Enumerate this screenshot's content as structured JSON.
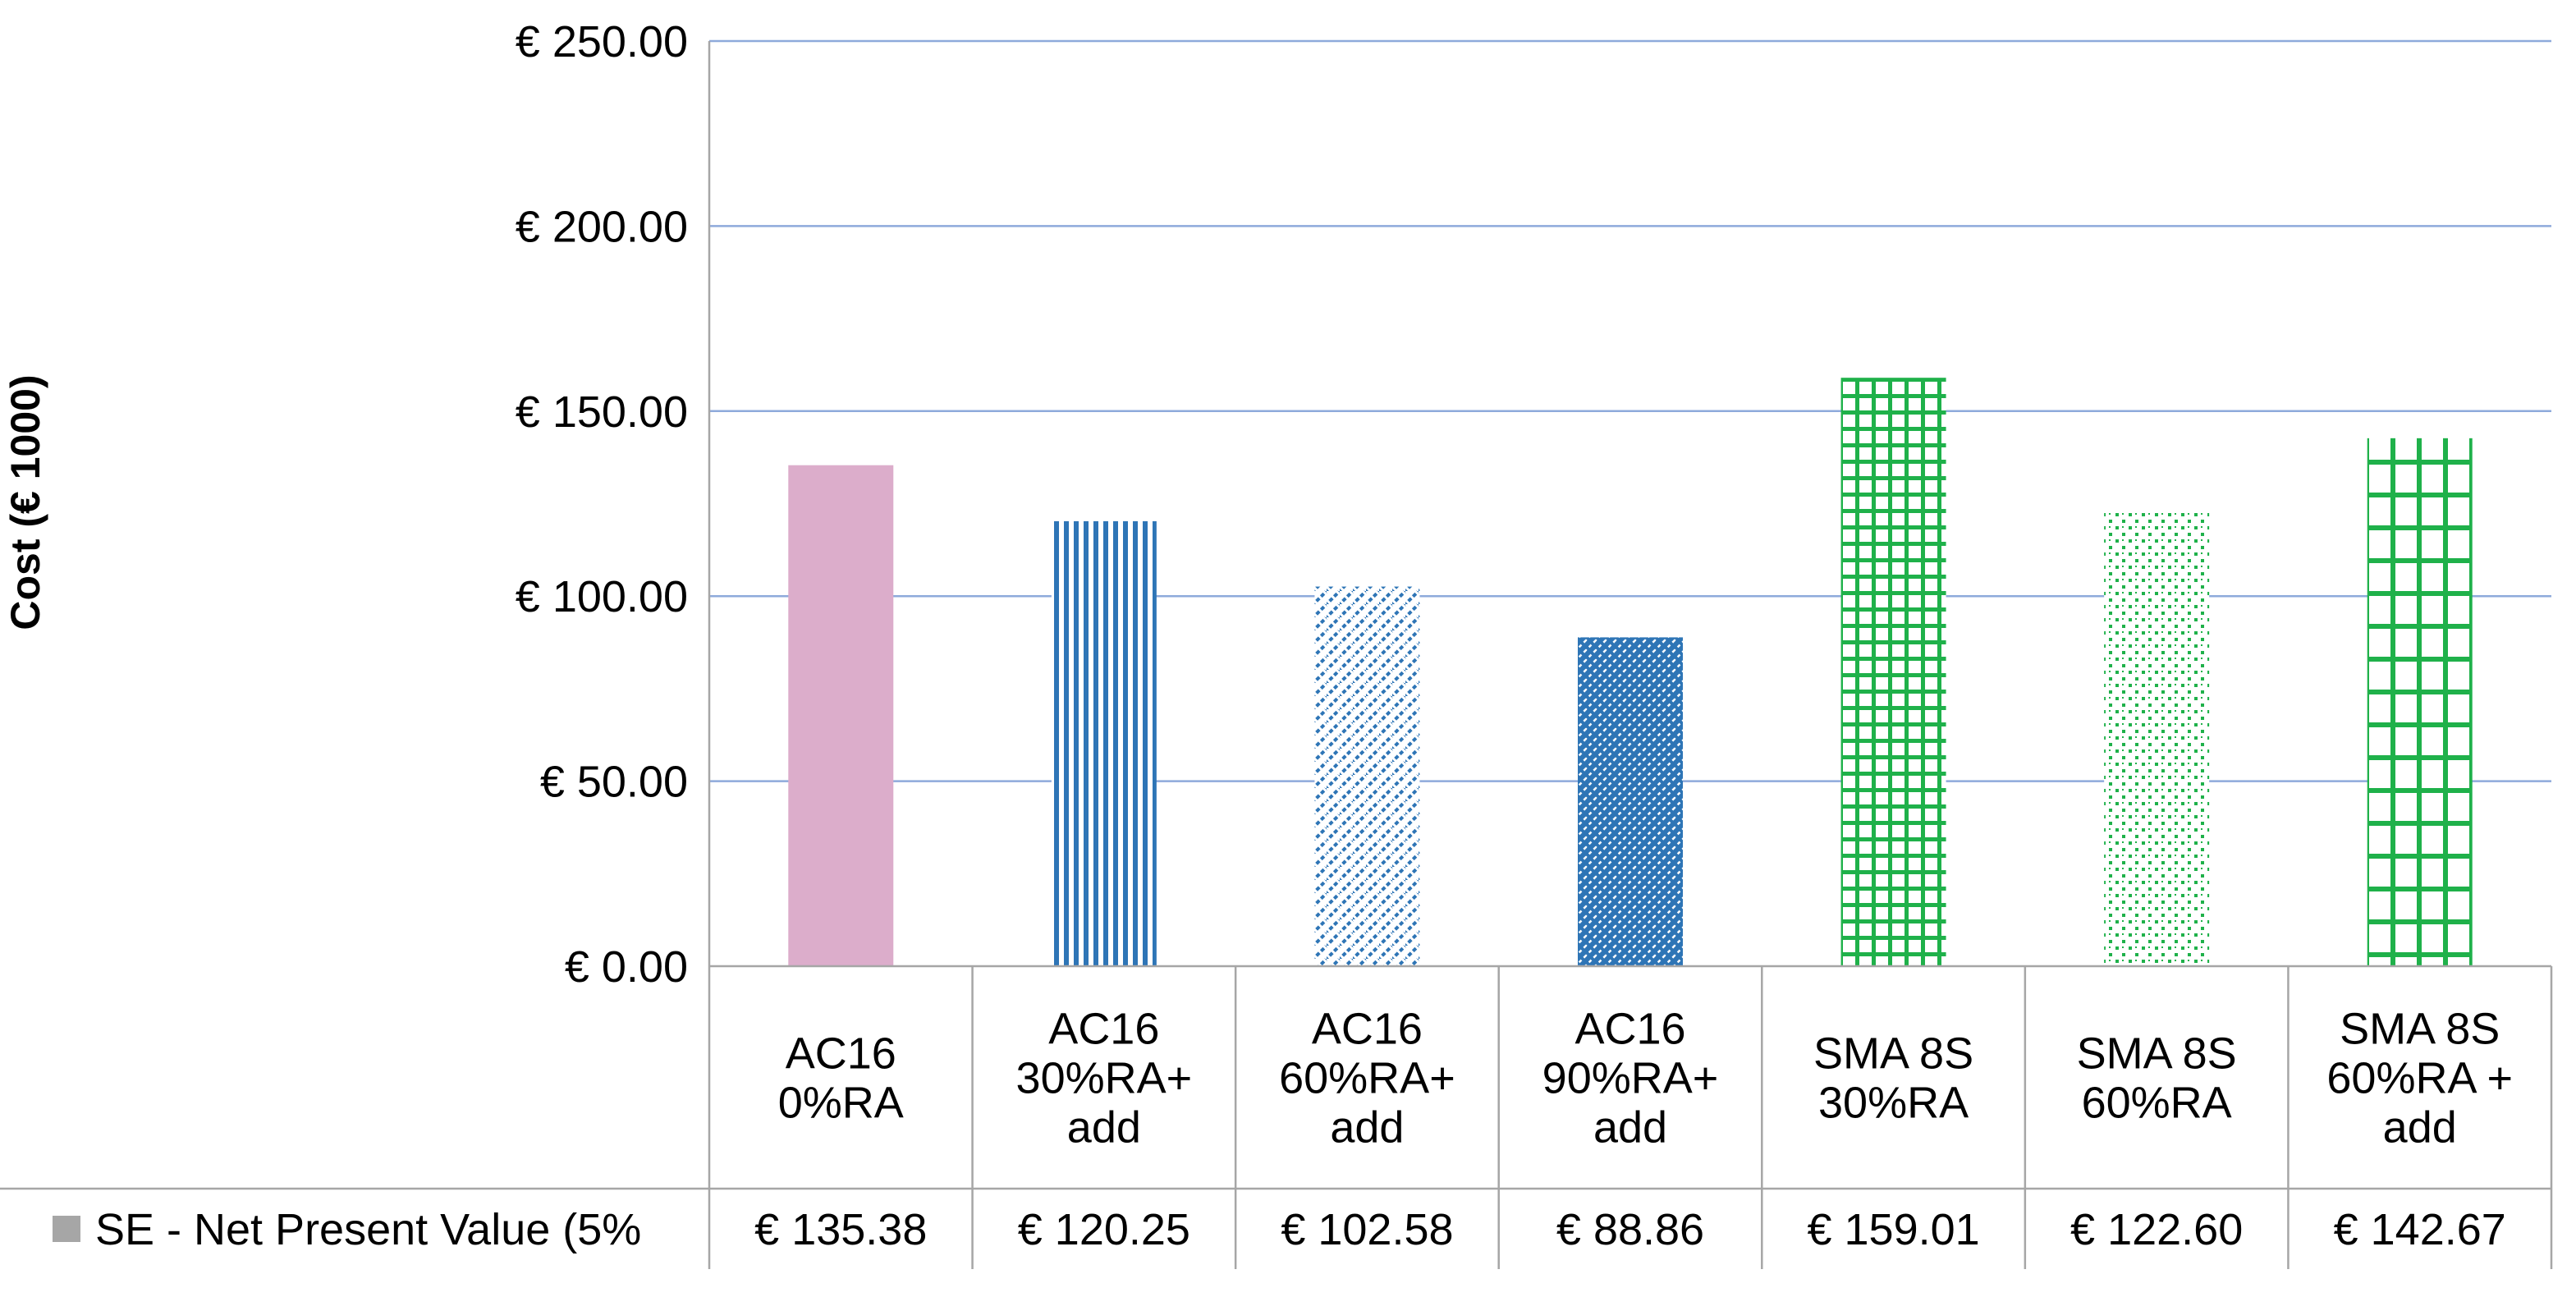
{
  "chart_data": {
    "type": "bar",
    "title": "",
    "xlabel": "",
    "ylabel": "Cost (€ 1000)",
    "ylim": [
      0,
      250
    ],
    "yticks": [
      0,
      50,
      100,
      150,
      200,
      250
    ],
    "ytick_labels": [
      "€ 0.00",
      "€ 50.00",
      "€ 100.00",
      "€ 150.00",
      "€ 200.00",
      "€ 250.00"
    ],
    "grid": true,
    "categories": [
      [
        "AC16",
        "0%RA"
      ],
      [
        "AC16",
        "30%RA+",
        "add"
      ],
      [
        "AC16",
        "60%RA+",
        "add"
      ],
      [
        "AC16",
        "90%RA+",
        "add"
      ],
      [
        "SMA 8S",
        "30%RA"
      ],
      [
        "SMA 8S",
        "60%RA"
      ],
      [
        "SMA 8S",
        "60%RA +",
        "add"
      ]
    ],
    "series": [
      {
        "name": "SE - Net Present Value (5%",
        "values": [
          135.38,
          120.25,
          102.58,
          88.86,
          159.01,
          122.6,
          142.67
        ],
        "value_labels": [
          "€ 135.38",
          "€ 120.25",
          "€ 102.58",
          "€ 88.86",
          "€ 159.01",
          "€ 122.60",
          "€ 142.67"
        ]
      }
    ],
    "bar_styles": [
      {
        "color": "#dcadcb",
        "pattern": "solid"
      },
      {
        "color": "#2e75b6",
        "pattern": "vertical-lines"
      },
      {
        "color": "#2e75b6",
        "pattern": "light-diagonal"
      },
      {
        "color": "#2e75b6",
        "pattern": "dense-diagonal"
      },
      {
        "color": "#1fb14a",
        "pattern": "small-grid"
      },
      {
        "color": "#1fb14a",
        "pattern": "dotted"
      },
      {
        "color": "#1fb14a",
        "pattern": "large-grid"
      }
    ],
    "legend_swatch_color": "#a6a6a6",
    "gridline_color": "#8eaadb",
    "legend": "data-table-row"
  }
}
